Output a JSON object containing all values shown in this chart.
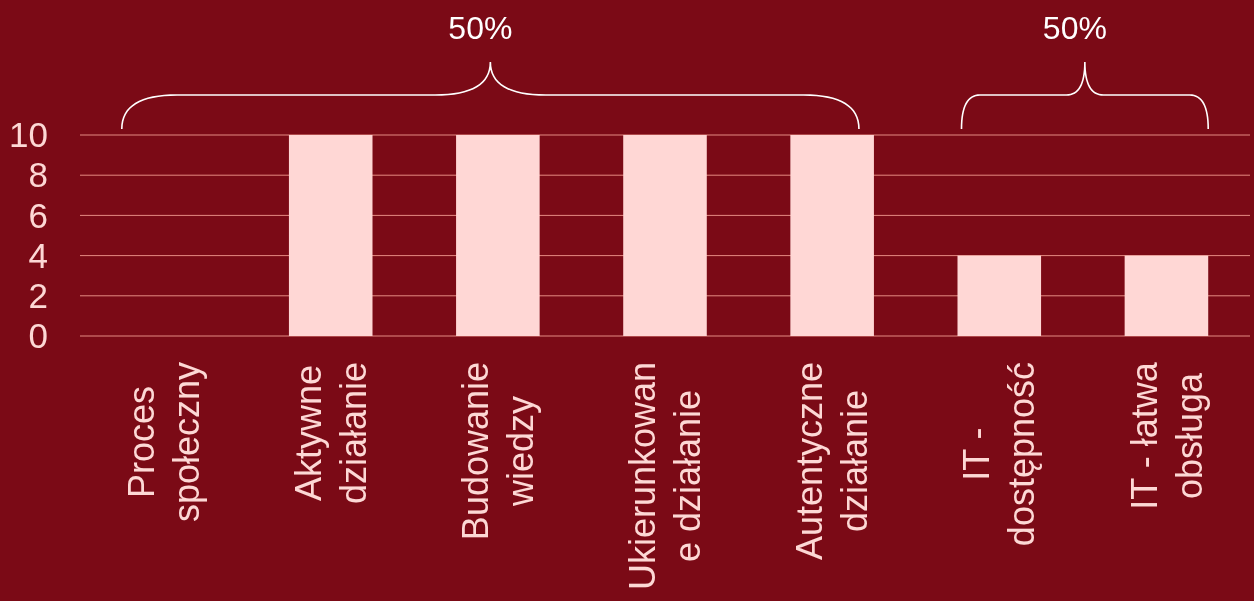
{
  "chart_data": {
    "type": "bar",
    "categories": [
      "Proces\nspołeczny",
      "Aktywne\ndziałanie",
      "Budowanie\nwiedzy",
      "Ukierunkowan\ne działanie",
      "Autentyczne\ndziałanie",
      "IT -\ndostępność",
      "IT - łatwa\nobsługa"
    ],
    "values": [
      0,
      10,
      10,
      10,
      10,
      4,
      4
    ],
    "color": "#ffd7d5",
    "ylim": [
      0,
      10
    ],
    "yticks": [
      0,
      2,
      4,
      6,
      8,
      10
    ],
    "grid": "y",
    "annotations": [
      "50%",
      "50%"
    ]
  }
}
